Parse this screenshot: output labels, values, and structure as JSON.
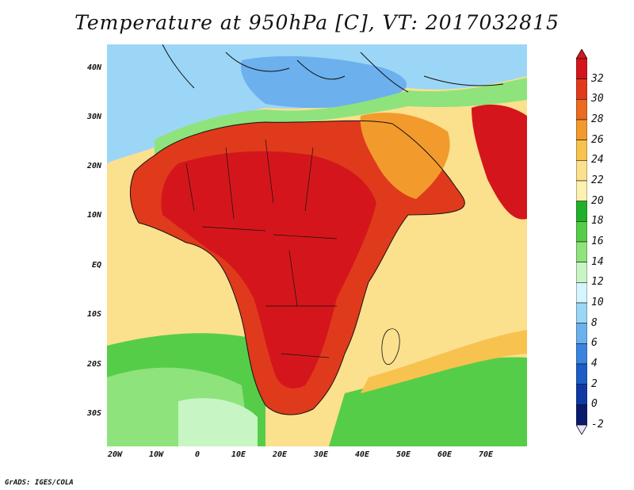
{
  "title": "Temperature at 950hPa [C], VT: 2017032815",
  "credit": "GrADS: IGES/COLA",
  "y_axis": [
    "40N",
    "30N",
    "20N",
    "10N",
    "EQ",
    "10S",
    "20S",
    "30S"
  ],
  "x_axis": [
    "20W",
    "10W",
    "0",
    "10E",
    "20E",
    "30E",
    "40E",
    "50E",
    "60E",
    "70E"
  ],
  "colorbar": {
    "labels": [
      "32",
      "30",
      "28",
      "26",
      "24",
      "22",
      "20",
      "18",
      "16",
      "14",
      "12",
      "10",
      "8",
      "6",
      "4",
      "2",
      "0",
      "-2"
    ],
    "colors": [
      "#d4161c",
      "#e03a1c",
      "#ec6a21",
      "#f39a2c",
      "#f8c24e",
      "#fbe08e",
      "#fcf1b0",
      "#22b02c",
      "#56cd48",
      "#8ee37c",
      "#c8f5c4",
      "#d6f6ff",
      "#9cd6f7",
      "#6cb0ee",
      "#3a84de",
      "#1c5dc6",
      "#0e38a4",
      "#0a1a6e"
    ]
  }
}
